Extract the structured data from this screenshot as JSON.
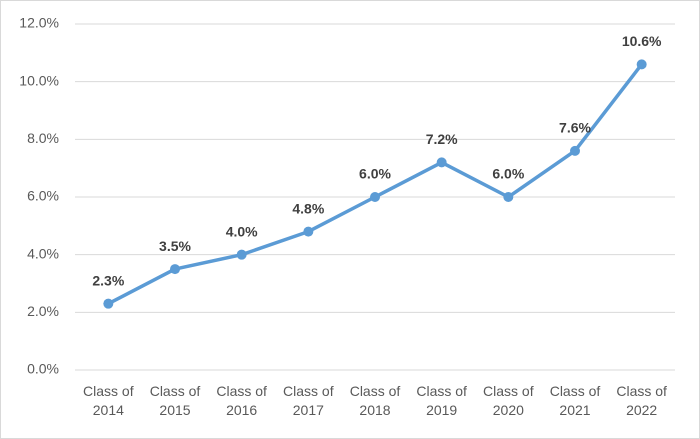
{
  "chart_data": {
    "type": "line",
    "categories": [
      "Class of 2014",
      "Class of 2015",
      "Class of 2016",
      "Class of 2017",
      "Class of 2018",
      "Class of 2019",
      "Class of 2020",
      "Class of 2021",
      "Class of 2022"
    ],
    "series": [
      {
        "color": "#5b9bd5",
        "values": [
          2.3,
          3.5,
          4.0,
          4.8,
          6.0,
          7.2,
          6.0,
          7.6,
          10.6
        ],
        "value_labels": [
          "2.3%",
          "3.5%",
          "4.0%",
          "4.8%",
          "6.0%",
          "7.2%",
          "6.0%",
          "7.6%",
          "10.6%"
        ]
      }
    ],
    "ylim": [
      0,
      12
    ],
    "yticks": [
      {
        "value": 0,
        "label": "0.0%"
      },
      {
        "value": 2,
        "label": "2.0%"
      },
      {
        "value": 4,
        "label": "4.0%"
      },
      {
        "value": 6,
        "label": "6.0%"
      },
      {
        "value": 8,
        "label": "8.0%"
      },
      {
        "value": 10,
        "label": "10.0%"
      },
      {
        "value": 12,
        "label": "12.0%"
      }
    ],
    "grid": true
  }
}
